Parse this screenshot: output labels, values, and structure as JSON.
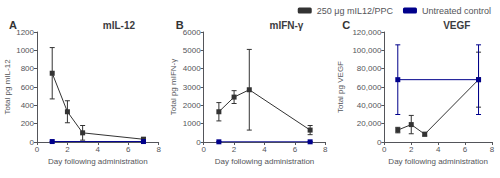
{
  "chart_data": [
    {
      "type": "line",
      "title": "mIL-12",
      "panel_label": "A",
      "x_label": "Day following administration",
      "y_label": "Total pg mIL-12",
      "xlim": [
        0,
        8
      ],
      "xticks": [
        0,
        2,
        4,
        6,
        8
      ],
      "ylim": [
        0,
        1200
      ],
      "yticks": [
        0,
        200,
        400,
        600,
        800,
        1000,
        1200
      ],
      "grid": false,
      "legend": "upper right",
      "series": [
        {
          "name": "250 μg mIL12/PPC",
          "color": "#333333",
          "marker": "square",
          "x": [
            1,
            2,
            3,
            7
          ],
          "values": [
            750,
            330,
            100,
            30
          ],
          "errors": [
            280,
            120,
            80,
            20
          ]
        },
        {
          "name": "Untreated control",
          "color": "#00008b",
          "marker": "square",
          "x": [
            1,
            7
          ],
          "values": [
            5,
            5
          ],
          "errors": [
            3,
            3
          ]
        }
      ]
    },
    {
      "type": "line",
      "title": "mIFN-γ",
      "panel_label": "B",
      "x_label": "Day following administration",
      "y_label": "Total pg mIFN-γ",
      "xlim": [
        0,
        8
      ],
      "xticks": [
        0,
        2,
        4,
        6,
        8
      ],
      "ylim": [
        0,
        6000
      ],
      "yticks": [
        0,
        1000,
        2000,
        3000,
        4000,
        5000,
        6000
      ],
      "grid": false,
      "legend": "upper right",
      "series": [
        {
          "name": "250 μg mIL12/PPC",
          "color": "#333333",
          "marker": "square",
          "x": [
            1,
            2,
            3,
            7
          ],
          "values": [
            1650,
            2450,
            2850,
            650
          ],
          "errors": [
            500,
            350,
            2200,
            250
          ]
        },
        {
          "name": "Untreated control",
          "color": "#00008b",
          "marker": "square",
          "x": [
            1,
            7
          ],
          "values": [
            10,
            10
          ],
          "errors": [
            5,
            5
          ]
        }
      ]
    },
    {
      "type": "line",
      "title": "VEGF",
      "panel_label": "C",
      "x_label": "Day following administration",
      "y_label": "Total pg VEGF",
      "xlim": [
        0,
        8
      ],
      "xticks": [
        0,
        2,
        4,
        6,
        8
      ],
      "ylim": [
        0,
        120000
      ],
      "yticks": [
        0,
        {
          "value": 20000,
          "label": "20,000"
        },
        {
          "value": 40000,
          "label": "40,000"
        },
        {
          "value": 60000,
          "label": "60,000"
        },
        {
          "value": 80000,
          "label": "80,000"
        },
        {
          "value": 100000,
          "label": "100,000"
        },
        {
          "value": 120000,
          "label": "120,000"
        }
      ],
      "grid": false,
      "legend": "upper right",
      "series": [
        {
          "name": "250 μg mIL12/PPC",
          "color": "#333333",
          "marker": "square",
          "x": [
            1,
            2,
            3,
            7
          ],
          "values": [
            13000,
            19000,
            8500,
            68000
          ],
          "errors": [
            3000,
            10000,
            2000,
            30000
          ]
        },
        {
          "name": "Untreated control",
          "color": "#00008b",
          "marker": "square",
          "x": [
            1,
            7
          ],
          "values": [
            68000,
            68000
          ],
          "errors": [
            38000,
            38000
          ]
        }
      ]
    }
  ]
}
